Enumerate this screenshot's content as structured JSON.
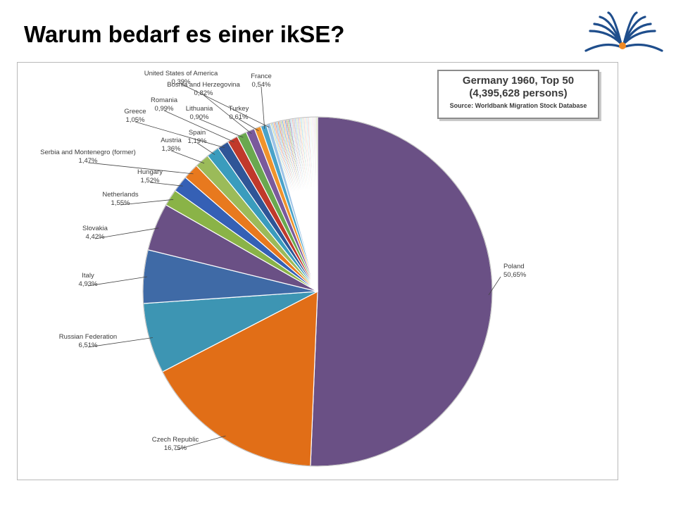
{
  "slide": {
    "title": "Warum bedarf es einer ikSE?"
  },
  "logo": {
    "icon": "open-book-logo-icon",
    "accent_color": "#f08a24",
    "page_color": "#1f4e8c"
  },
  "chart_data": {
    "type": "pie",
    "title": "Germany 1960, Top 50",
    "subtitle": "(4,395,628 persons)",
    "source": "Source: Worldbank Migration Stock Database",
    "slices": [
      {
        "label": "Poland",
        "value": 50.65,
        "display": "50,65%",
        "color": "#6a5085"
      },
      {
        "label": "Czech Republic",
        "value": 16.75,
        "display": "16,75%",
        "color": "#e16e17"
      },
      {
        "label": "Russian Federation",
        "value": 6.51,
        "display": "6,51%",
        "color": "#3d95b3"
      },
      {
        "label": "Italy",
        "value": 4.93,
        "display": "4,93%",
        "color": "#3f6aa6"
      },
      {
        "label": "Slovakia",
        "value": 4.42,
        "display": "4,42%",
        "color": "#6a5085"
      },
      {
        "label": "Netherlands",
        "value": 1.55,
        "display": "1,55%",
        "color": "#8ab347"
      },
      {
        "label": "Hungary",
        "value": 1.52,
        "display": "1,52%",
        "color": "#3560b5"
      },
      {
        "label": "Serbia and Montenegro (former)",
        "value": 1.47,
        "display": "1,47%",
        "color": "#e8791e"
      },
      {
        "label": "Austria",
        "value": 1.36,
        "display": "1,36%",
        "color": "#9bbb59"
      },
      {
        "label": "Spain",
        "value": 1.19,
        "display": "1,19%",
        "color": "#3a9cbd"
      },
      {
        "label": "Greece",
        "value": 1.05,
        "display": "1,05%",
        "color": "#2f5597"
      },
      {
        "label": "Romania",
        "value": 0.99,
        "display": "0,99%",
        "color": "#c0392b"
      },
      {
        "label": "Lithuania",
        "value": 0.9,
        "display": "0,90%",
        "color": "#6aa84f"
      },
      {
        "label": "Bosnia and Herzegovina",
        "value": 0.82,
        "display": "0,82%",
        "color": "#7a5a9c"
      },
      {
        "label": "Turkey",
        "value": 0.61,
        "display": "0,61%",
        "color": "#f0932b"
      },
      {
        "label": "France",
        "value": 0.54,
        "display": "0,54%",
        "color": "#4aa3c9"
      },
      {
        "label": "United States of America",
        "value": 0.39,
        "display": "0,39%",
        "color": "#9dc3e6"
      }
    ],
    "other_slices": {
      "remaining_share": 4.35,
      "colors": [
        "#a9c46c",
        "#5b9bd5",
        "#ed7d31",
        "#7f6a9c",
        "#4bacc6",
        "#c55a11",
        "#8064a2",
        "#9bbb59",
        "#4f81bd",
        "#f79646",
        "#3b6fb0",
        "#b05a3c",
        "#70ad47",
        "#5e4b8b",
        "#93cddd",
        "#d99694",
        "#a5a5a5",
        "#8eb4e3",
        "#c3d69b",
        "#b3a2c7",
        "#fac090",
        "#92cddc",
        "#d7e4bd",
        "#ccc1da",
        "#fcd5b5",
        "#b7dee8",
        "#e6b9b8",
        "#dbeef4",
        "#ebf1dd",
        "#e5e0ec",
        "#f2dcdb",
        "#d9d9d9",
        "#c4d79b"
      ]
    }
  }
}
